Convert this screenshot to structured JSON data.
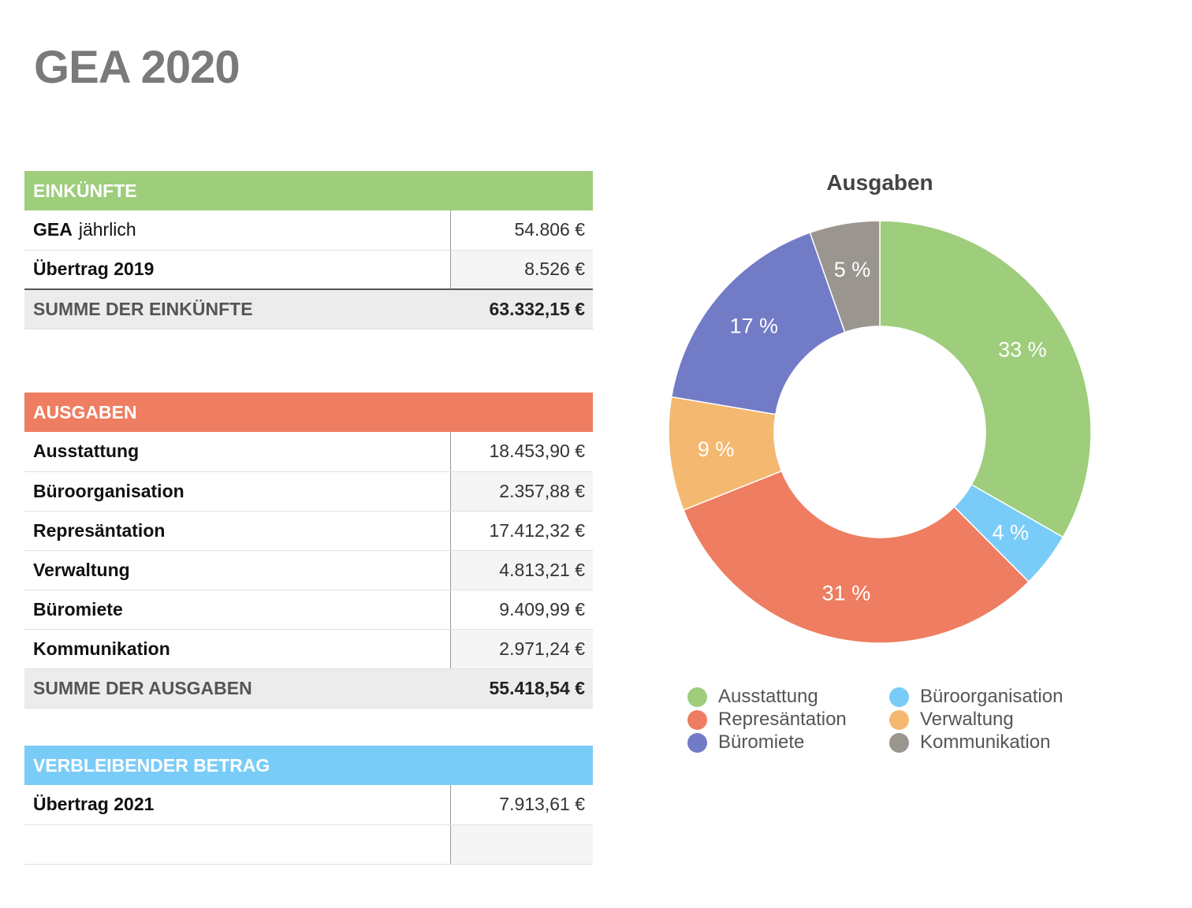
{
  "title": "GEA 2020",
  "income": {
    "header": "EINKÜNFTE",
    "header_color": "#9ecd7c",
    "rows": [
      {
        "label": "GEA",
        "sub": "jährlich",
        "value": "54.806 €"
      },
      {
        "label": "Übertrag 2019",
        "value": "8.526 €"
      }
    ],
    "sum_label": "SUMME DER EINKÜNFTE",
    "sum_value": "63.332,15 €"
  },
  "expenses": {
    "header": "AUSGABEN",
    "header_color": "#ee7d61",
    "rows": [
      {
        "label": "Ausstattung",
        "value": "18.453,90 €"
      },
      {
        "label": "Büroorganisation",
        "value": "2.357,88 €"
      },
      {
        "label": "Represäntation",
        "value": "17.412,32 €"
      },
      {
        "label": "Verwaltung",
        "value": "4.813,21 €"
      },
      {
        "label": "Büromiete",
        "value": "9.409,99 €"
      },
      {
        "label": "Kommunikation",
        "value": "2.971,24 €"
      }
    ],
    "sum_label": "SUMME DER AUSGABEN",
    "sum_value": "55.418,54 €"
  },
  "remaining": {
    "header": "VERBLEIBENDER BETRAG",
    "header_color": "#7accf8",
    "rows": [
      {
        "label": "Übertrag 2021",
        "value": "7.913,61 €"
      },
      {
        "label": "",
        "value": ""
      }
    ]
  },
  "chart_data": {
    "type": "pie",
    "title": "Ausgaben",
    "donut": true,
    "categories": [
      "Ausstattung",
      "Büroorganisation",
      "Represäntation",
      "Verwaltung",
      "Büromiete",
      "Kommunikation"
    ],
    "values": [
      18453.9,
      2357.88,
      17412.32,
      4813.21,
      9409.99,
      2971.24
    ],
    "labels": [
      "33 %",
      "4 %",
      "31 %",
      "9 %",
      "17 %",
      "5 %"
    ],
    "colors": [
      "#9ecd7c",
      "#7accf8",
      "#ee7d61",
      "#f4b870",
      "#727bc6",
      "#9b9590"
    ],
    "legend_position": "bottom"
  }
}
